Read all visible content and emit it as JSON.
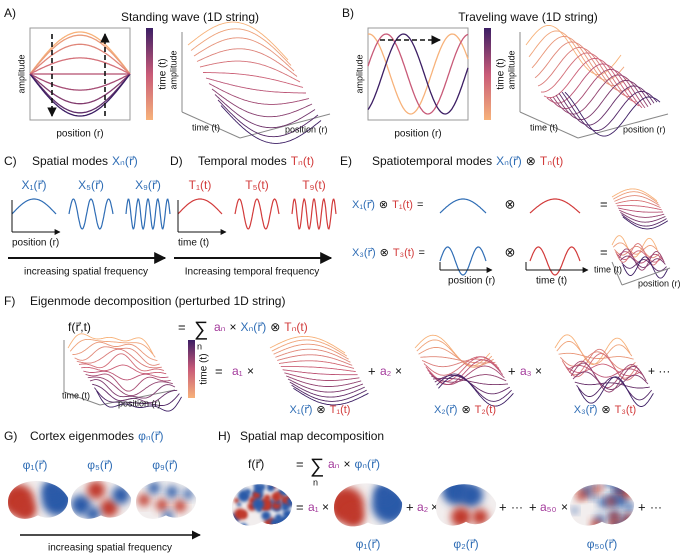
{
  "A": {
    "label": "A)",
    "title": "Standing wave (1D string)",
    "y_label": "amplitude",
    "x_label": "position (r)",
    "colorbar_label": "time (t)",
    "surface_y_label": "amplitude",
    "surface_time_label": "time (t)",
    "surface_position_label": "position (r)"
  },
  "B": {
    "label": "B)",
    "title": "Traveling wave (1D string)",
    "y_label": "amplitude",
    "x_label": "position (r)",
    "colorbar_label": "time (t)",
    "surface_y_label": "amplitude",
    "surface_time_label": "time (t)",
    "surface_position_label": "position (r)"
  },
  "C": {
    "label": "C)",
    "title": "Spatial modes",
    "symbol": "Xₙ(r⃗)",
    "modes": [
      "X₁(r⃗)",
      "X₅(r⃗)",
      "X₉(r⃗)"
    ],
    "axis_label": "position (r)",
    "arrow_label": "increasing spatial frequency"
  },
  "D": {
    "label": "D)",
    "title": "Temporal modes",
    "symbol": "Tₙ(t)",
    "modes": [
      "T₁(t)",
      "T₅(t)",
      "T₉(t)"
    ],
    "axis_label": "time (t)",
    "arrow_label": "Increasing temporal frequency"
  },
  "E": {
    "label": "E)",
    "title": "Spatiotemporal modes",
    "symbol_x": "Xₙ(r⃗)",
    "op": "⊗",
    "symbol_t": "Tₙ(t)",
    "equals": "=",
    "rows": [
      {
        "x": "X₁(r⃗)",
        "t": "T₁(t)"
      },
      {
        "x": "X₃(r⃗)",
        "t": "T₃(t)"
      }
    ],
    "position_label": "position (r)",
    "time_label": "time (t)",
    "surface_time_label": "time (t)",
    "surface_position_label": "position (r)"
  },
  "F": {
    "label": "F)",
    "title": "Eigenmode decomposition  (perturbed 1D string)",
    "lhs": "f(r⃗,t)",
    "equals": "=",
    "sum": "∑",
    "sum_index": "n",
    "coef": "aₙ",
    "times": "×",
    "basis_x": "Xₙ(r⃗)",
    "op": "⊗",
    "basis_t": "Tₙ(t)",
    "colorbar_label": "time (t)",
    "time_label": "time (t)",
    "position_label": "position (r)",
    "plus": "+",
    "coefs": [
      "a₁",
      "a₂",
      "a₃"
    ],
    "terms": [
      {
        "x": "X₁(r⃗)",
        "t": "T₁(t)"
      },
      {
        "x": "X₂(r⃗)",
        "t": "T₂(t)"
      },
      {
        "x": "X₃(r⃗)",
        "t": "T₃(t)"
      }
    ],
    "ellipsis": "+ ···"
  },
  "G": {
    "label": "G)",
    "title": "Cortex eigenmodes",
    "symbol": "φₙ(r⃗)",
    "modes": [
      "φ₁(r⃗)",
      "φ₅(r⃗)",
      "φ₉(r⃗)"
    ],
    "arrow_label": "increasing spatial frequency"
  },
  "H": {
    "label": "H)",
    "title": "Spatial map decomposition",
    "lhs": "f(r⃗)",
    "equals": "=",
    "sum": "∑",
    "sum_index": "n",
    "coef": "aₙ",
    "times": "×",
    "basis": "φₙ(r⃗)",
    "coefs": [
      "a₁",
      "a₂",
      "a₅₀"
    ],
    "plus": "+",
    "dots": "···",
    "modes": [
      "φ₁(r⃗)",
      "φ₂(r⃗)",
      "φ₅₀(r⃗)"
    ]
  }
}
